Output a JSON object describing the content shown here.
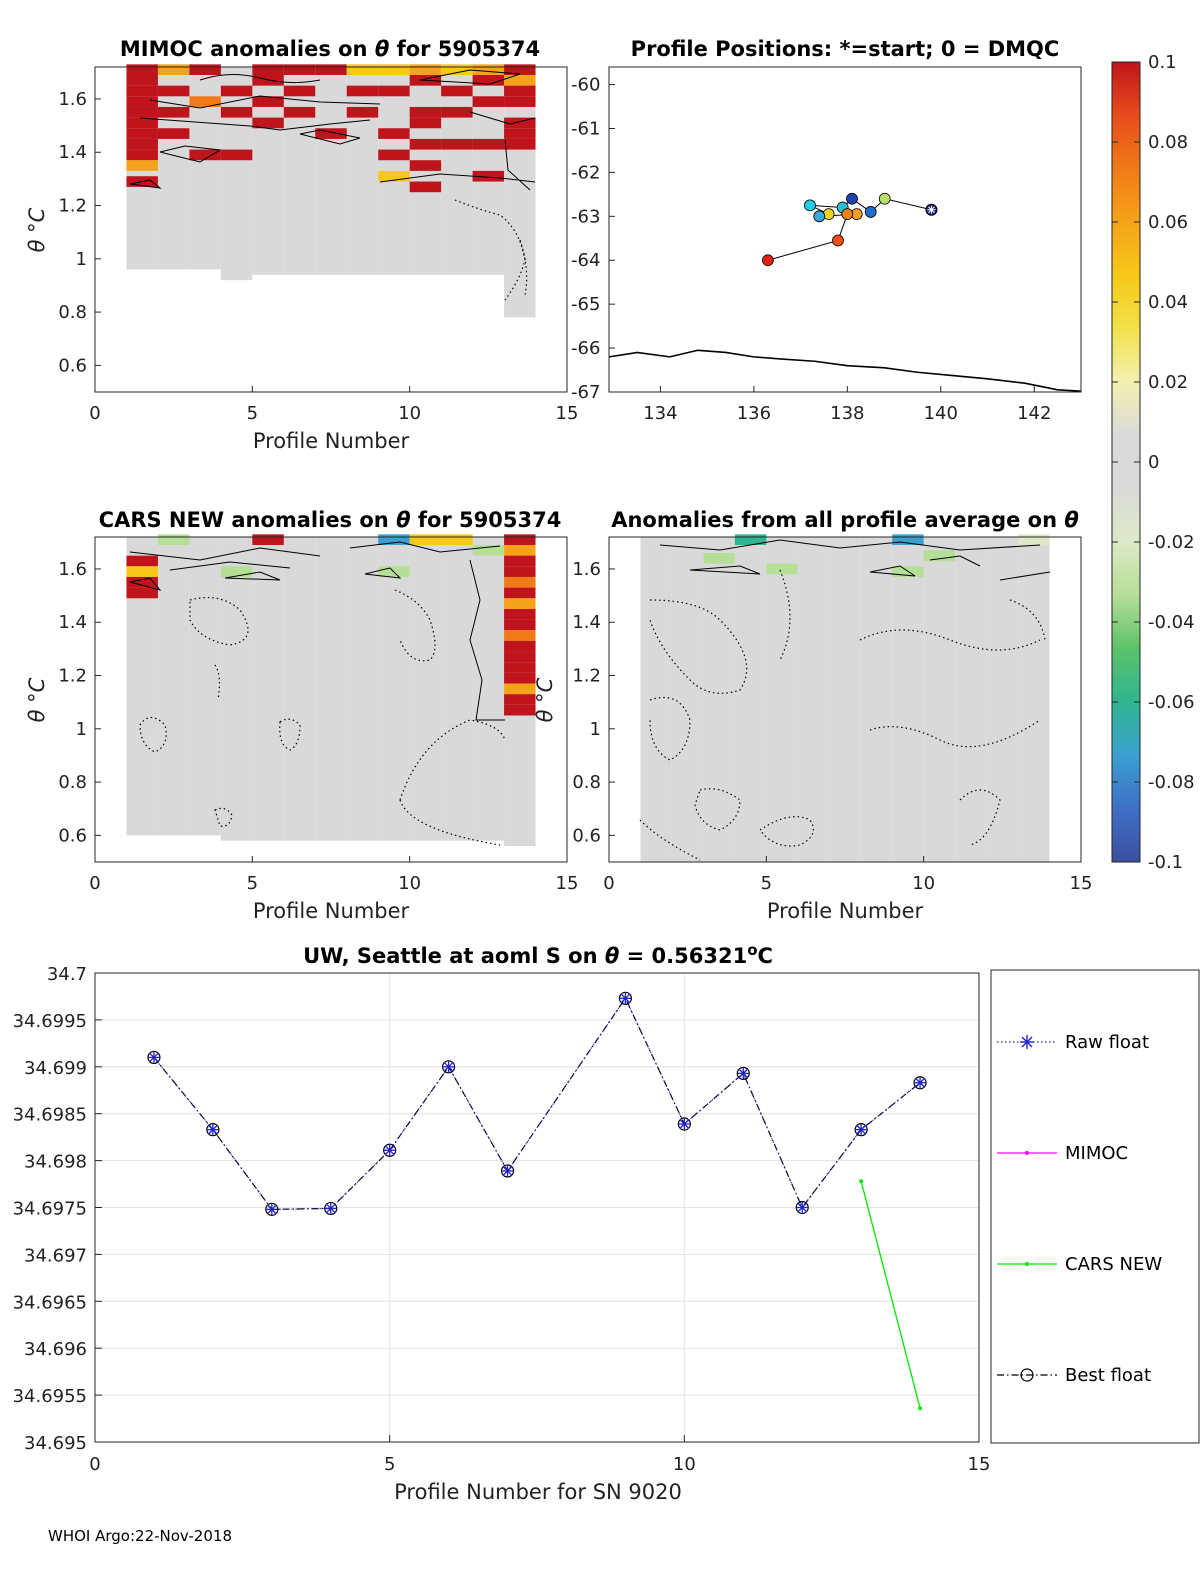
{
  "colors": {
    "background": "#d9d9d9",
    "raw_float": "#2222cc",
    "mimoc": "#ff00ff",
    "cars_new": "#00e600",
    "best_float": "#000000",
    "coast": "#000000"
  },
  "colorbar": {
    "ticks": [
      0.1,
      0.08,
      0.06,
      0.04,
      0.02,
      0,
      -0.02,
      -0.04,
      -0.06,
      -0.08,
      -0.1
    ],
    "tick_labels": [
      "0.1",
      "0.08",
      "0.06",
      "0.04",
      "0.02",
      "0",
      "-0.02",
      "-0.04",
      "-0.06",
      "-0.08",
      "-0.1"
    ],
    "stops": [
      "#3a4f9f",
      "#3f6fc6",
      "#3aa0d0",
      "#2fb58f",
      "#5cc26a",
      "#b5df97",
      "#dde9c6",
      "#dadada",
      "#dadada",
      "#f4f0b0",
      "#f2e24a",
      "#f6c818",
      "#f5a31a",
      "#f07a18",
      "#e84c1c",
      "#c0141c"
    ]
  },
  "panels": {
    "mimoc": {
      "title_prefix": "MIMOC anomalies on",
      "title_suffix": "for 5905374",
      "theta_symbol": "θ",
      "ylabel": "θ °C",
      "xlabel": "Profile Number",
      "xticks": [
        "0",
        "5",
        "10",
        "15"
      ],
      "yticks": [
        "1.6",
        "1.4",
        "1.2",
        "1",
        "0.8",
        "0.6"
      ],
      "xlim": [
        0,
        15
      ],
      "ylim": [
        0.5,
        1.72
      ]
    },
    "positions": {
      "title": "Profile Positions: *=start; 0 = DMQC",
      "xticks": [
        "134",
        "136",
        "138",
        "140",
        "142"
      ],
      "yticks": [
        "-60",
        "-61",
        "-62",
        "-63",
        "-64",
        "-65",
        "-66",
        "-67"
      ],
      "xlim": [
        132.9,
        143
      ],
      "ylim": [
        -67,
        -59.6
      ]
    },
    "cars": {
      "title_prefix": "CARS NEW anomalies on",
      "title_suffix": "for 5905374",
      "theta_symbol": "θ",
      "ylabel": "θ °C",
      "xlabel": "Profile Number",
      "xticks": [
        "0",
        "5",
        "10",
        "15"
      ],
      "yticks": [
        "1.6",
        "1.4",
        "1.2",
        "1",
        "0.8",
        "0.6"
      ],
      "xlim": [
        0,
        15
      ],
      "ylim": [
        0.5,
        1.72
      ]
    },
    "avg": {
      "title_prefix": "Anomalies from all profile average on",
      "theta_symbol": "θ",
      "ylabel": "θ °C",
      "xlabel": "Profile Number",
      "xticks": [
        "0",
        "5",
        "10",
        "15"
      ],
      "yticks": [
        "1.6",
        "1.4",
        "1.2",
        "1",
        "0.8",
        "0.6"
      ],
      "xlim": [
        0,
        15
      ],
      "ylim": [
        0.5,
        1.72
      ]
    },
    "line": {
      "title_prefix": "UW, Seattle at aoml S on",
      "theta_symbol": "θ",
      "title_value": "= 0.56321",
      "title_unit_sup": "o",
      "title_unit": "C",
      "xlabel": "Profile Number for SN 9020",
      "xticks": [
        "0",
        "5",
        "10",
        "15"
      ],
      "yticks": [
        "34.7",
        "34.6995",
        "34.699",
        "34.6985",
        "34.698",
        "34.6975",
        "34.697",
        "34.6965",
        "34.696",
        "34.6955",
        "34.695"
      ],
      "xlim": [
        0,
        15
      ],
      "ylim": [
        34.695,
        34.7
      ],
      "legend": {
        "raw": "Raw float",
        "mimoc": "MIMOC",
        "cars": "CARS NEW",
        "best": "Best float"
      }
    }
  },
  "chart_data": [
    {
      "type": "heatmap",
      "name": "MIMOC anomalies",
      "title": "MIMOC anomalies on θ for 5905374",
      "xlabel": "Profile Number",
      "ylabel": "θ °C",
      "xlim": [
        0,
        15
      ],
      "ylim": [
        0.5,
        1.72
      ],
      "columns": [
        1,
        2,
        3,
        4,
        5,
        6,
        7,
        8,
        9,
        10,
        11,
        12,
        13
      ],
      "theta_min_per_column": [
        0.96,
        0.96,
        0.96,
        0.92,
        0.94,
        0.94,
        0.94,
        0.94,
        0.94,
        0.94,
        0.94,
        0.94,
        0.78
      ],
      "hot_band_theta": [
        1.25,
        1.72
      ],
      "hot_cells": [
        [
          1,
          1.71,
          0.1
        ],
        [
          1,
          1.67,
          0.1
        ],
        [
          1,
          1.63,
          0.1
        ],
        [
          1,
          1.59,
          0.1
        ],
        [
          1,
          1.55,
          0.1
        ],
        [
          1,
          1.51,
          0.1
        ],
        [
          1,
          1.47,
          0.1
        ],
        [
          1,
          1.43,
          0.1
        ],
        [
          1,
          1.39,
          0.1
        ],
        [
          1,
          1.35,
          0.06
        ],
        [
          1,
          1.29,
          0.1
        ],
        [
          2,
          1.71,
          0.06
        ],
        [
          2,
          1.63,
          0.1
        ],
        [
          2,
          1.55,
          0.1
        ],
        [
          2,
          1.47,
          0.1
        ],
        [
          3,
          1.71,
          0.1
        ],
        [
          3,
          1.59,
          0.08
        ],
        [
          3,
          1.39,
          0.1
        ],
        [
          4,
          1.63,
          0.1
        ],
        [
          4,
          1.55,
          0.1
        ],
        [
          4,
          1.39,
          0.1
        ],
        [
          5,
          1.71,
          0.1
        ],
        [
          5,
          1.67,
          0.1
        ],
        [
          5,
          1.59,
          0.1
        ],
        [
          5,
          1.51,
          0.1
        ],
        [
          6,
          1.71,
          0.1
        ],
        [
          6,
          1.63,
          0.1
        ],
        [
          6,
          1.55,
          0.1
        ],
        [
          7,
          1.71,
          0.1
        ],
        [
          7,
          1.47,
          0.1
        ],
        [
          8,
          1.71,
          0.04
        ],
        [
          8,
          1.63,
          0.1
        ],
        [
          8,
          1.55,
          0.1
        ],
        [
          9,
          1.71,
          0.04
        ],
        [
          9,
          1.63,
          0.1
        ],
        [
          9,
          1.47,
          0.1
        ],
        [
          9,
          1.39,
          0.1
        ],
        [
          9,
          1.31,
          0.04
        ],
        [
          10,
          1.71,
          0.06
        ],
        [
          10,
          1.67,
          0.1
        ],
        [
          10,
          1.55,
          0.1
        ],
        [
          10,
          1.51,
          0.1
        ],
        [
          10,
          1.43,
          0.1
        ],
        [
          10,
          1.35,
          0.1
        ],
        [
          10,
          1.27,
          0.1
        ],
        [
          11,
          1.71,
          0.04
        ],
        [
          11,
          1.63,
          0.1
        ],
        [
          11,
          1.55,
          0.1
        ],
        [
          11,
          1.43,
          0.1
        ],
        [
          12,
          1.71,
          0.06
        ],
        [
          12,
          1.67,
          0.1
        ],
        [
          12,
          1.59,
          0.1
        ],
        [
          12,
          1.43,
          0.1
        ],
        [
          12,
          1.31,
          0.1
        ],
        [
          13,
          1.71,
          0.1
        ],
        [
          13,
          1.67,
          0.06
        ],
        [
          13,
          1.63,
          0.1
        ],
        [
          13,
          1.59,
          0.1
        ],
        [
          13,
          1.51,
          0.1
        ],
        [
          13,
          1.47,
          0.1
        ],
        [
          13,
          1.43,
          0.1
        ]
      ]
    },
    {
      "type": "scatter",
      "name": "Profile positions",
      "title": "Profile Positions: *=start; 0 = DMQC",
      "xlim": [
        132.9,
        143
      ],
      "ylim": [
        -67,
        -59.6
      ],
      "points": [
        {
          "lon": 139.8,
          "lat": -62.85,
          "color": "#1a237e",
          "marker": "star-start"
        },
        {
          "lon": 138.8,
          "lat": -62.6,
          "color": "#b5e06a"
        },
        {
          "lon": 138.5,
          "lat": -62.9,
          "color": "#1e6fd0"
        },
        {
          "lon": 138.1,
          "lat": -62.6,
          "color": "#2040b0"
        },
        {
          "lon": 137.9,
          "lat": -62.8,
          "color": "#2ec0d8"
        },
        {
          "lon": 137.2,
          "lat": -62.75,
          "color": "#20d0e8"
        },
        {
          "lon": 137.6,
          "lat": -62.95,
          "color": "#f0d020"
        },
        {
          "lon": 137.4,
          "lat": -63.0,
          "color": "#3aa8e0"
        },
        {
          "lon": 138.2,
          "lat": -62.95,
          "color": "#f5a020"
        },
        {
          "lon": 138.0,
          "lat": -62.95,
          "color": "#f08018"
        },
        {
          "lon": 137.8,
          "lat": -63.55,
          "color": "#f05018"
        },
        {
          "lon": 136.3,
          "lat": -64.0,
          "color": "#e02010"
        }
      ],
      "coastline": [
        [
          132.9,
          -66.2
        ],
        [
          133.5,
          -66.1
        ],
        [
          134.2,
          -66.2
        ],
        [
          134.8,
          -66.05
        ],
        [
          135.4,
          -66.1
        ],
        [
          136,
          -66.2
        ],
        [
          136.6,
          -66.25
        ],
        [
          137.3,
          -66.3
        ],
        [
          138,
          -66.4
        ],
        [
          138.8,
          -66.45
        ],
        [
          139.5,
          -66.55
        ],
        [
          140.2,
          -66.62
        ],
        [
          141,
          -66.7
        ],
        [
          141.8,
          -66.8
        ],
        [
          142.5,
          -66.95
        ],
        [
          143,
          -66.98
        ]
      ]
    },
    {
      "type": "heatmap",
      "name": "CARS NEW anomalies",
      "title": "CARS NEW anomalies on θ for 5905374",
      "xlabel": "Profile Number",
      "ylabel": "θ °C",
      "xlim": [
        0,
        15
      ],
      "ylim": [
        0.5,
        1.72
      ],
      "theta_min_per_column": [
        0.6,
        0.6,
        0.6,
        0.58,
        0.58,
        0.58,
        0.58,
        0.58,
        0.58,
        0.58,
        0.58,
        0.58,
        0.56
      ],
      "hot_cells": [
        [
          1,
          1.63,
          0.1
        ],
        [
          1,
          1.59,
          0.04
        ],
        [
          1,
          1.55,
          0.1
        ],
        [
          1,
          1.51,
          0.1
        ],
        [
          5,
          1.71,
          0.1
        ],
        [
          10,
          1.71,
          0.04
        ],
        [
          11,
          1.71,
          0.04
        ],
        [
          13,
          1.71,
          0.1
        ],
        [
          13,
          1.67,
          0.06
        ],
        [
          13,
          1.63,
          0.1
        ],
        [
          13,
          1.59,
          0.1
        ],
        [
          13,
          1.55,
          0.08
        ],
        [
          13,
          1.51,
          0.1
        ],
        [
          13,
          1.47,
          0.06
        ],
        [
          13,
          1.43,
          0.1
        ],
        [
          13,
          1.39,
          0.1
        ],
        [
          13,
          1.35,
          0.08
        ],
        [
          13,
          1.31,
          0.1
        ],
        [
          13,
          1.27,
          0.1
        ],
        [
          13,
          1.23,
          0.1
        ],
        [
          13,
          1.19,
          0.1
        ],
        [
          13,
          1.15,
          0.06
        ],
        [
          13,
          1.11,
          0.1
        ],
        [
          13,
          1.07,
          0.1
        ]
      ],
      "cold_cells": [
        [
          2,
          1.71,
          -0.04
        ],
        [
          9,
          1.71,
          -0.08
        ],
        [
          4,
          1.59,
          -0.04
        ],
        [
          9,
          1.59,
          -0.04
        ],
        [
          12,
          1.67,
          -0.04
        ]
      ]
    },
    {
      "type": "heatmap",
      "name": "Anomalies from all profile average",
      "title": "Anomalies from all profile average on θ",
      "xlabel": "Profile Number",
      "ylabel": "θ °C",
      "xlim": [
        0,
        15
      ],
      "ylim": [
        0.5,
        1.72
      ],
      "theta_min_per_column": [
        0.5,
        0.5,
        0.5,
        0.5,
        0.5,
        0.5,
        0.5,
        0.5,
        0.5,
        0.5,
        0.5,
        0.5,
        0.5
      ],
      "cold_cells": [
        [
          4,
          1.71,
          -0.06
        ],
        [
          9,
          1.71,
          -0.08
        ],
        [
          10,
          1.65,
          -0.04
        ],
        [
          5,
          1.6,
          -0.04
        ],
        [
          9,
          1.59,
          -0.04
        ],
        [
          3,
          1.64,
          -0.04
        ],
        [
          13,
          1.71,
          -0.02
        ]
      ]
    },
    {
      "type": "line",
      "title": "UW, Seattle at aoml S on θ = 0.56321°C",
      "xlabel": "Profile Number for SN 9020",
      "ylabel": "",
      "xlim": [
        0,
        15
      ],
      "ylim": [
        34.695,
        34.7
      ],
      "grid": true,
      "legend": "right-outside",
      "series": [
        {
          "name": "Raw float",
          "x": [
            1,
            2,
            3,
            4,
            5,
            6,
            7,
            8,
            9,
            10,
            11,
            12,
            13,
            14
          ],
          "y": [
            34.6991,
            34.69833,
            34.69748,
            34.69749,
            34.69811,
            34.699,
            34.69789,
            null,
            34.69973,
            34.69839,
            34.69893,
            34.6975,
            34.69833,
            34.69883
          ]
        },
        {
          "name": "MIMOC",
          "x": [],
          "y": []
        },
        {
          "name": "CARS NEW",
          "x": [
            13,
            14
          ],
          "y": [
            34.69778,
            34.69536
          ]
        },
        {
          "name": "Best float",
          "x": [
            1,
            2,
            3,
            4,
            5,
            6,
            7,
            8,
            9,
            10,
            11,
            12,
            13,
            14
          ],
          "y": [
            34.6991,
            34.69833,
            34.69748,
            34.69749,
            34.69811,
            34.699,
            34.69789,
            null,
            34.69973,
            34.69839,
            34.69893,
            34.6975,
            34.69833,
            34.69883
          ]
        }
      ]
    }
  ],
  "footer": {
    "text": "WHOI Argo:22-Nov-2018"
  }
}
